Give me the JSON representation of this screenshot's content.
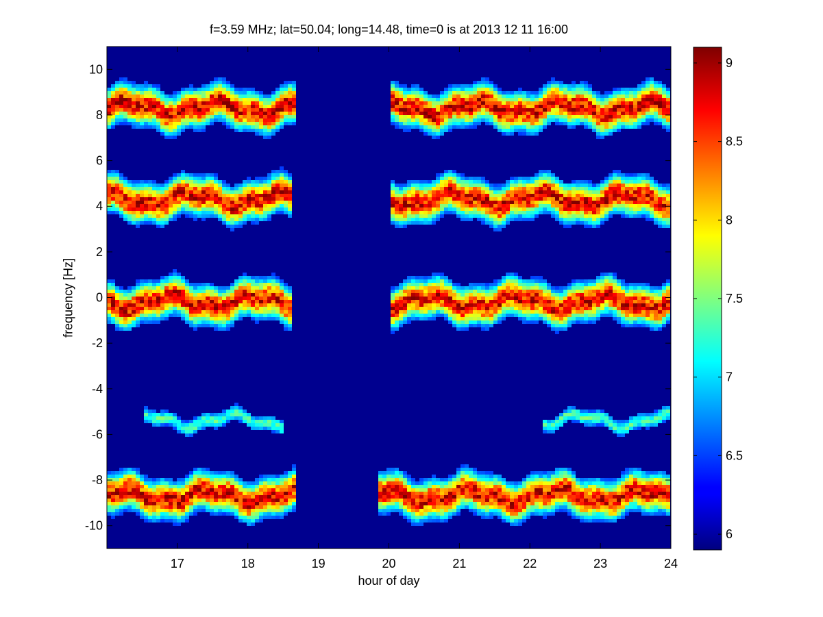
{
  "chart_data": {
    "type": "heatmap",
    "title": "f=3.59 MHz;  lat=50.04; long=14.48, time=0 is at 2013 12 11 16:00",
    "xlabel": "hour of day",
    "ylabel": "frequency [Hz]",
    "xlim": [
      16,
      24
    ],
    "ylim": [
      -11,
      11
    ],
    "x_ticks": [
      17,
      18,
      19,
      20,
      21,
      22,
      23,
      24
    ],
    "y_ticks": [
      10,
      8,
      6,
      4,
      2,
      0,
      -2,
      -4,
      -6,
      -8,
      -10
    ],
    "x_tick_labels": [
      "17",
      "18",
      "19",
      "20",
      "21",
      "22",
      "23",
      "24"
    ],
    "y_tick_labels": [
      "10",
      "8",
      "6",
      "4",
      "2",
      "0",
      "-2",
      "-4",
      "-6",
      "-8",
      "-10"
    ],
    "colorbar": {
      "range": [
        5.9,
        9.1
      ],
      "ticks": [
        9,
        8.5,
        8,
        7.5,
        7,
        6.5,
        6
      ],
      "tick_labels": [
        "9",
        "8.5",
        "8",
        "7.5",
        "7",
        "6.5",
        "6"
      ],
      "colormap": "jet"
    },
    "bands": [
      {
        "center_hz": 8.3,
        "x_segments": [
          [
            16.0,
            18.7
          ],
          [
            20.0,
            24.0
          ]
        ]
      },
      {
        "center_hz": 4.3,
        "x_segments": [
          [
            16.0,
            18.6
          ],
          [
            20.0,
            24.0
          ]
        ]
      },
      {
        "center_hz": -0.2,
        "x_segments": [
          [
            16.0,
            18.6
          ],
          [
            20.0,
            24.0
          ]
        ]
      },
      {
        "center_hz": -5.4,
        "x_segments": [
          [
            16.5,
            18.5
          ],
          [
            22.2,
            24.0
          ]
        ]
      },
      {
        "center_hz": -8.7,
        "x_segments": [
          [
            16.0,
            18.7
          ],
          [
            19.85,
            24.0
          ]
        ]
      }
    ],
    "grid": false
  }
}
